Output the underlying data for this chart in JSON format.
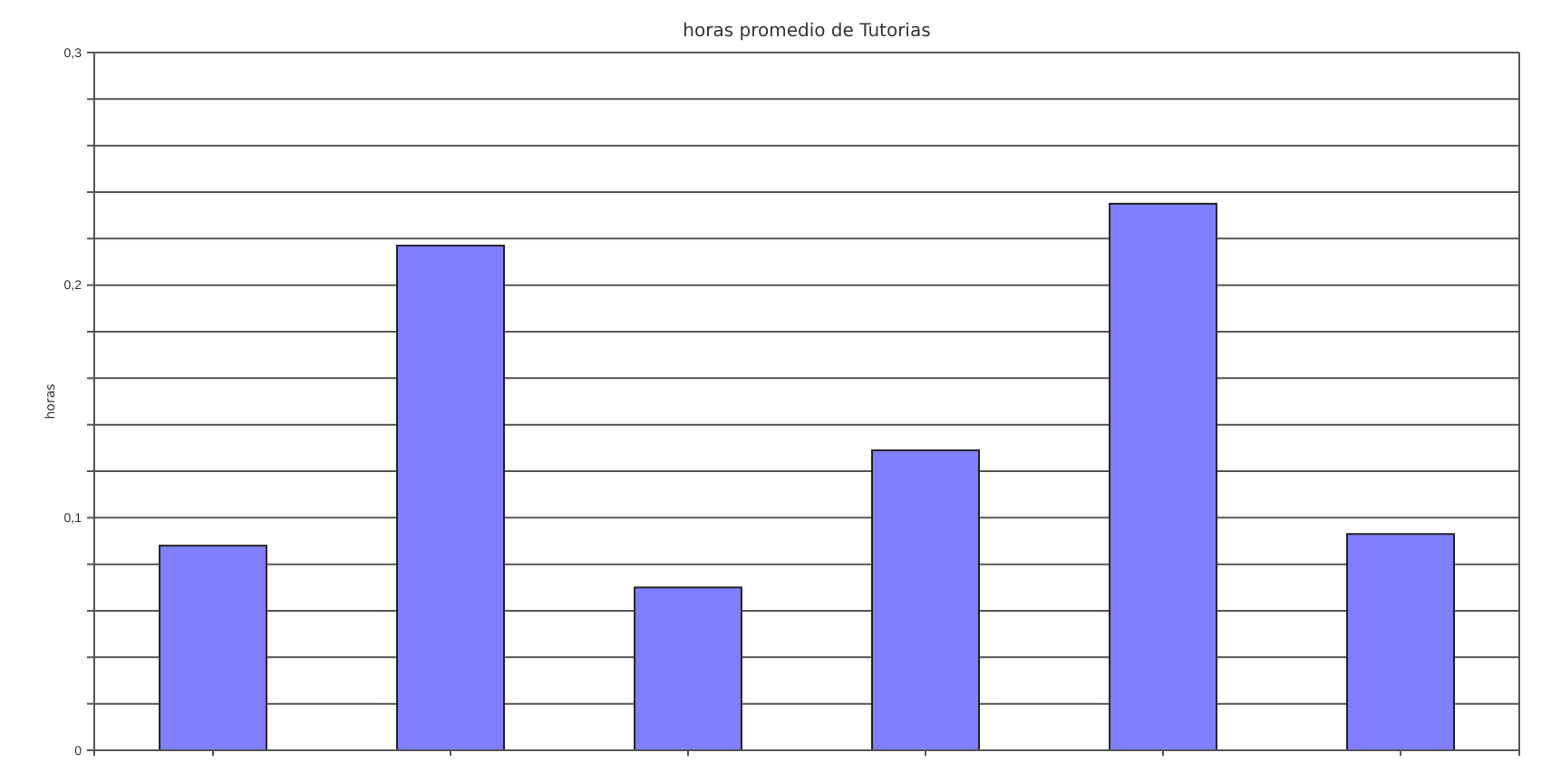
{
  "chart_data": {
    "type": "bar",
    "title": "horas promedio de  Tutorias",
    "ylabel": "horas",
    "categories": [
      null,
      null,
      null,
      null,
      null,
      null
    ],
    "values": [
      0.088,
      0.217,
      0.07,
      0.129,
      0.235,
      0.093
    ],
    "color": "#8080ff",
    "ylim": [
      0,
      0.3
    ],
    "yticks": [
      0,
      {
        "value": 0.02,
        "label": null
      },
      {
        "value": 0.04,
        "label": null
      },
      {
        "value": 0.06,
        "label": null
      },
      {
        "value": 0.08,
        "label": null
      },
      {
        "value": 0.1,
        "label": "0,1"
      },
      {
        "value": 0.12,
        "label": null
      },
      {
        "value": 0.14,
        "label": null
      },
      {
        "value": 0.16,
        "label": null
      },
      {
        "value": 0.18,
        "label": null
      },
      {
        "value": 0.2,
        "label": "0,2"
      },
      {
        "value": 0.22,
        "label": null
      },
      {
        "value": 0.24,
        "label": null
      },
      {
        "value": 0.26,
        "label": null
      },
      {
        "value": 0.28,
        "label": null
      },
      {
        "value": 0.3,
        "label": "0,3"
      }
    ],
    "grid": "y"
  }
}
